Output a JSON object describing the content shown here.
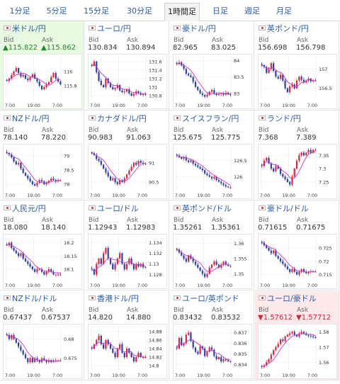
{
  "tabs": [
    {
      "label": "1分足",
      "active": false
    },
    {
      "label": "5分足",
      "active": false
    },
    {
      "label": "15分足",
      "active": false
    },
    {
      "label": "30分足",
      "active": false
    },
    {
      "label": "1時間足",
      "active": true
    },
    {
      "label": "日足",
      "active": false
    },
    {
      "label": "週足",
      "active": false
    },
    {
      "label": "月足",
      "active": false
    }
  ],
  "headers": {
    "bid": "Bid",
    "ask": "Ask"
  },
  "colors": {
    "up_candle": "#e02040",
    "down_candle": "#2a3fa8",
    "ma_line": "#cc33cc",
    "up_bg": "#e8fbe0",
    "down_bg": "#fde8ea",
    "link": "#2a5aa8"
  },
  "pairs": [
    {
      "name": "米ドル/円",
      "bid": "▲115.822",
      "ask": "▲115.862",
      "trend": "up",
      "chart_data": {
        "type": "candlestick",
        "x_ticks": [
          "7:00",
          "19:00",
          "7:00"
        ],
        "y_ticks": [
          "116",
          "115.8"
        ],
        "ylim": [
          115.6,
          116.2
        ],
        "close": [
          115.87,
          115.9,
          115.95,
          116.0,
          116.05,
          115.98,
          115.93,
          115.95,
          115.9,
          115.88,
          115.92,
          115.96,
          115.9,
          115.86,
          115.8,
          115.75,
          115.78,
          115.82,
          115.85,
          115.92,
          115.98,
          115.9,
          115.86,
          115.82
        ]
      }
    },
    {
      "name": "ユーロ/円",
      "bid": "130.834",
      "ask": "130.894",
      "trend": "flat",
      "chart_data": {
        "type": "candlestick",
        "x_ticks": [
          "7:00",
          "19:00",
          "7:00"
        ],
        "y_ticks": [
          "131.6",
          "131.4",
          "131.2",
          "131",
          "130.8"
        ],
        "ylim": [
          130.7,
          131.7
        ],
        "close": [
          131.5,
          131.6,
          131.35,
          131.15,
          131.05,
          131.0,
          131.2,
          131.1,
          131.0,
          130.95,
          130.98,
          131.05,
          130.92,
          130.88,
          130.9,
          130.95,
          130.85,
          130.8,
          130.84,
          130.9,
          130.86,
          130.82,
          130.84,
          130.83
        ]
      }
    },
    {
      "name": "豪ドル/円",
      "bid": "82.965",
      "ask": "83.025",
      "trend": "flat",
      "chart_data": {
        "type": "candlestick",
        "x_ticks": [
          "7:00",
          "19:00",
          "7:00"
        ],
        "y_ticks": [
          "84",
          "83.5",
          "83"
        ],
        "ylim": [
          82.8,
          84.1
        ],
        "close": [
          83.9,
          83.95,
          83.85,
          83.75,
          83.6,
          83.55,
          83.5,
          83.35,
          83.2,
          83.1,
          83.0,
          82.95,
          82.9,
          82.95,
          83.05,
          83.1,
          83.0,
          82.95,
          82.98,
          83.0,
          82.96,
          83.02,
          82.97,
          82.96
        ]
      }
    },
    {
      "name": "英ポンド/円",
      "bid": "156.698",
      "ask": "156.798",
      "trend": "flat",
      "chart_data": {
        "type": "candlestick",
        "x_ticks": [
          "7:00",
          "19:00",
          "7:00"
        ],
        "y_ticks": [
          "157",
          "156.5"
        ],
        "ylim": [
          156.2,
          157.3
        ],
        "close": [
          157.1,
          157.05,
          156.9,
          157.0,
          157.15,
          156.95,
          156.8,
          156.75,
          156.85,
          156.7,
          156.5,
          156.4,
          156.55,
          156.6,
          156.5,
          156.7,
          156.8,
          156.72,
          156.65,
          156.7,
          156.75,
          156.68,
          156.7,
          156.7
        ]
      }
    },
    {
      "name": "NZドル/円",
      "bid": "78.140",
      "ask": "78.220",
      "trend": "flat",
      "chart_data": {
        "type": "candlestick",
        "x_ticks": [
          "7:00",
          "19:00",
          "7:00"
        ],
        "y_ticks": [
          "79",
          "78.5",
          "78"
        ],
        "ylim": [
          77.8,
          79.3
        ],
        "close": [
          79.1,
          79.05,
          78.95,
          78.8,
          78.7,
          78.75,
          78.55,
          78.4,
          78.3,
          78.2,
          78.1,
          78.0,
          77.95,
          78.05,
          78.15,
          78.1,
          78.0,
          78.05,
          78.12,
          78.2,
          78.15,
          78.1,
          78.14,
          78.14
        ]
      }
    },
    {
      "name": "カナダドル/円",
      "bid": "90.983",
      "ask": "91.063",
      "trend": "flat",
      "chart_data": {
        "type": "candlestick",
        "x_ticks": [
          "7:00",
          "19:00",
          "7:00"
        ],
        "y_ticks": [
          "91",
          "90.5"
        ],
        "ylim": [
          90.3,
          91.4
        ],
        "close": [
          91.25,
          91.2,
          91.1,
          91.05,
          90.95,
          90.85,
          90.75,
          90.65,
          90.55,
          90.6,
          90.5,
          90.45,
          90.55,
          90.5,
          90.6,
          90.7,
          90.8,
          90.9,
          91.0,
          90.95,
          91.05,
          91.0,
          90.98,
          90.98
        ]
      }
    },
    {
      "name": "スイスフラン/円",
      "bid": "125.675",
      "ask": "125.775",
      "trend": "flat",
      "chart_data": {
        "type": "candlestick",
        "x_ticks": [
          "7:00",
          "19:00",
          "7:00"
        ],
        "y_ticks": [
          "126.5",
          "126"
        ],
        "ylim": [
          125.6,
          126.9
        ],
        "close": [
          126.65,
          126.6,
          126.55,
          126.6,
          126.5,
          126.45,
          126.5,
          126.4,
          126.35,
          126.3,
          126.25,
          126.2,
          126.1,
          126.05,
          126.0,
          125.95,
          126.0,
          125.9,
          125.85,
          125.8,
          125.75,
          125.7,
          125.68,
          125.68
        ]
      }
    },
    {
      "name": "ランド/円",
      "bid": "7.368",
      "ask": "7.389",
      "trend": "flat",
      "chart_data": {
        "type": "candlestick",
        "x_ticks": [
          "7:00",
          "19:00",
          "7:00"
        ],
        "y_ticks": [
          "7.35",
          "7.3",
          "7.25"
        ],
        "ylim": [
          7.22,
          7.38
        ],
        "close": [
          7.31,
          7.33,
          7.34,
          7.32,
          7.3,
          7.29,
          7.31,
          7.3,
          7.28,
          7.27,
          7.26,
          7.25,
          7.24,
          7.27,
          7.3,
          7.33,
          7.35,
          7.36,
          7.35,
          7.36,
          7.37,
          7.36,
          7.37,
          7.37
        ]
      }
    },
    {
      "name": "人民元/円",
      "bid": "18.080",
      "ask": "18.140",
      "trend": "flat",
      "chart_data": {
        "type": "candlestick",
        "x_ticks": [
          "7:00",
          "19:00",
          "7:00"
        ],
        "y_ticks": [
          "18.2",
          "18.15",
          "18.1"
        ],
        "ylim": [
          18.06,
          18.22
        ],
        "close": [
          18.19,
          18.2,
          18.18,
          18.17,
          18.16,
          18.15,
          18.16,
          18.14,
          18.13,
          18.12,
          18.11,
          18.1,
          18.09,
          18.1,
          18.1,
          18.09,
          18.08,
          18.09,
          18.1,
          18.09,
          18.08,
          18.08,
          18.08,
          18.08
        ]
      }
    },
    {
      "name": "ユーロ/ドル",
      "bid": "1.12943",
      "ask": "1.12983",
      "trend": "flat",
      "chart_data": {
        "type": "candlestick",
        "x_ticks": [
          "7:00",
          "19:00",
          "7:00"
        ],
        "y_ticks": [
          "1.134",
          "1.132",
          "1.13",
          "1.128"
        ],
        "ylim": [
          1.127,
          1.135
        ],
        "close": [
          1.129,
          1.128,
          1.13,
          1.131,
          1.13,
          1.132,
          1.133,
          1.131,
          1.13,
          1.129,
          1.13,
          1.131,
          1.132,
          1.13,
          1.129,
          1.13,
          1.131,
          1.13,
          1.129,
          1.13,
          1.1295,
          1.13,
          1.1294,
          1.1294
        ]
      }
    },
    {
      "name": "英ポンド/ドル",
      "bid": "1.35261",
      "ask": "1.35361",
      "trend": "flat",
      "chart_data": {
        "type": "candlestick",
        "x_ticks": [
          "7:00",
          "19:00",
          "7:00"
        ],
        "y_ticks": [
          "1.36",
          "1.355",
          "1.35"
        ],
        "ylim": [
          1.348,
          1.362
        ],
        "close": [
          1.358,
          1.357,
          1.356,
          1.355,
          1.354,
          1.356,
          1.355,
          1.354,
          1.353,
          1.352,
          1.351,
          1.35,
          1.349,
          1.35,
          1.352,
          1.353,
          1.354,
          1.353,
          1.352,
          1.353,
          1.354,
          1.353,
          1.3526,
          1.3526
        ]
      }
    },
    {
      "name": "豪ドル/ドル",
      "bid": "0.71615",
      "ask": "0.71675",
      "trend": "flat",
      "chart_data": {
        "type": "candlestick",
        "x_ticks": [
          "7:00",
          "19:00",
          "7:00"
        ],
        "y_ticks": [
          "0.725",
          "0.72",
          "0.715"
        ],
        "ylim": [
          0.713,
          0.729
        ],
        "close": [
          0.727,
          0.726,
          0.725,
          0.724,
          0.723,
          0.724,
          0.722,
          0.721,
          0.72,
          0.719,
          0.718,
          0.717,
          0.716,
          0.717,
          0.716,
          0.715,
          0.716,
          0.717,
          0.716,
          0.7155,
          0.716,
          0.7162,
          0.7161,
          0.7161
        ]
      }
    },
    {
      "name": "NZドル/ドル",
      "bid": "0.67437",
      "ask": "0.67537",
      "trend": "flat",
      "chart_data": {
        "type": "candlestick",
        "x_ticks": [
          "7:00",
          "19:00",
          "7:00"
        ],
        "y_ticks": [
          "0.68",
          "0.675"
        ],
        "ylim": [
          0.672,
          0.683
        ],
        "close": [
          0.681,
          0.68,
          0.681,
          0.68,
          0.679,
          0.678,
          0.677,
          0.676,
          0.675,
          0.674,
          0.675,
          0.674,
          0.675,
          0.6745,
          0.674,
          0.675,
          0.6745,
          0.674,
          0.6745,
          0.674,
          0.6744,
          0.6744,
          0.6744,
          0.6744
        ]
      }
    },
    {
      "name": "香港ドル/円",
      "bid": "14.820",
      "ask": "14.880",
      "trend": "flat",
      "chart_data": {
        "type": "candlestick",
        "x_ticks": [
          "7:00",
          "19:00",
          "7:00"
        ],
        "y_ticks": [
          "14.88",
          "14.86",
          "14.84",
          "14.82",
          "14.8"
        ],
        "ylim": [
          14.79,
          14.89
        ],
        "close": [
          14.84,
          14.85,
          14.86,
          14.87,
          14.85,
          14.84,
          14.86,
          14.85,
          14.84,
          14.83,
          14.82,
          14.84,
          14.85,
          14.83,
          14.82,
          14.84,
          14.83,
          14.82,
          14.81,
          14.82,
          14.83,
          14.82,
          14.82,
          14.82
        ]
      }
    },
    {
      "name": "ユーロ/英ポンド",
      "bid": "0.83432",
      "ask": "0.83532",
      "trend": "flat",
      "chart_data": {
        "type": "candlestick",
        "x_ticks": [
          "7:00",
          "19:00",
          "7:00"
        ],
        "y_ticks": [
          "0.837",
          "0.836",
          "0.835",
          "0.834"
        ],
        "ylim": [
          0.8335,
          0.8375
        ],
        "close": [
          0.8355,
          0.8365,
          0.8358,
          0.836,
          0.8368,
          0.837,
          0.8362,
          0.8356,
          0.8352,
          0.835,
          0.8357,
          0.8355,
          0.8348,
          0.8352,
          0.8356,
          0.8354,
          0.8348,
          0.8345,
          0.8347,
          0.8343,
          0.8345,
          0.8344,
          0.8343,
          0.8343
        ]
      }
    },
    {
      "name": "ユーロ/豪ドル",
      "bid": "▼1.57612",
      "ask": "▼1.57712",
      "trend": "down",
      "chart_data": {
        "type": "candlestick",
        "x_ticks": [
          "7:00",
          "19:00",
          "7:00"
        ],
        "y_ticks": [
          "1.58",
          "1.57",
          "1.56"
        ],
        "ylim": [
          1.555,
          1.583
        ],
        "close": [
          1.557,
          1.558,
          1.56,
          1.562,
          1.565,
          1.568,
          1.57,
          1.572,
          1.575,
          1.574,
          1.577,
          1.578,
          1.579,
          1.58,
          1.578,
          1.577,
          1.579,
          1.58,
          1.579,
          1.578,
          1.5775,
          1.577,
          1.5765,
          1.5761
        ]
      }
    }
  ]
}
